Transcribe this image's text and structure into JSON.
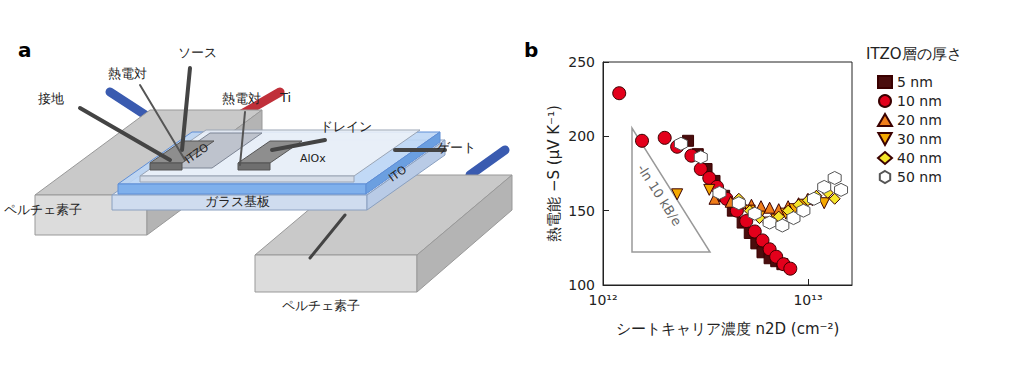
{
  "diagram": {
    "label": "a",
    "labels": {
      "source": "ソース",
      "thermocouple_left": "熱電対",
      "ground": "接地",
      "thermocouple_right": "熱電対",
      "ti": "Ti",
      "drain": "ドレイン",
      "gate": "ゲート",
      "itzo": "ITZO",
      "alox": "AlOx",
      "ito": "ITO",
      "glass": "ガラス基板",
      "peltier_left": "ペルチェ素子",
      "peltier_right": "ペルチェ素子"
    }
  },
  "chart_data": {
    "type": "scatter",
    "title": "b",
    "x_label": "シートキャリア濃度 n2D (cm⁻²)",
    "y_label": "熱電能 −S (μV K⁻¹)",
    "legend_title": "ITZO層の厚さ",
    "legend": "right",
    "annotations": [
      {
        "text": "-ln 10 kB/e"
      }
    ],
    "log": "x",
    "grid": false,
    "xlim": [
      1000000000000,
      16400000000000
    ],
    "xticks": [
      {
        "value": 1000000000000,
        "label": "10¹²"
      },
      {
        "value": 10000000000000,
        "label": "10¹³"
      }
    ],
    "ylim": [
      100,
      250
    ],
    "yticks": [
      100,
      150,
      200,
      250
    ],
    "series": [
      {
        "name": "5 nm",
        "color": "#4a0d0d",
        "marker": "square",
        "x": [
          2600000000000,
          2900000000000,
          3200000000000,
          3500000000000,
          3900000000000,
          4300000000000,
          4800000000000,
          5200000000000,
          5600000000000,
          6000000000000,
          6500000000000,
          7000000000000,
          7500000000000
        ],
        "values": [
          197,
          188,
          178,
          170,
          160,
          150,
          142,
          135,
          128,
          122,
          118,
          116,
          114
        ]
      },
      {
        "name": "10 nm",
        "color": "#e3001b",
        "marker": "circle",
        "x": [
          1200000000000,
          1550000000000,
          2000000000000,
          2300000000000,
          2700000000000,
          3000000000000,
          3300000000000,
          3600000000000,
          4000000000000,
          4500000000000,
          5000000000000,
          5500000000000,
          6000000000000,
          6500000000000,
          7000000000000,
          7600000000000,
          8200000000000
        ],
        "values": [
          229,
          197,
          199,
          193,
          187,
          178,
          172,
          166,
          158,
          150,
          143,
          136,
          130,
          124,
          119,
          114,
          111
        ]
      },
      {
        "name": "20 nm",
        "color": "#f07d1a",
        "marker": "triangle",
        "x": [
          3500000000000,
          4200000000000,
          4800000000000,
          5300000000000,
          5900000000000,
          6500000000000,
          7200000000000,
          8000000000000,
          9000000000000,
          10000000000000,
          11000000000000
        ],
        "values": [
          158,
          156,
          155,
          154,
          153,
          152,
          151,
          153,
          155,
          158,
          160
        ]
      },
      {
        "name": "30 nm",
        "color": "#f5a800",
        "marker": "triangle-down",
        "x": [
          2300000000000,
          3300000000000,
          5200000000000,
          5800000000000,
          6400000000000,
          7000000000000,
          7800000000000,
          8600000000000,
          9500000000000,
          10500000000000,
          12000000000000
        ],
        "values": [
          161,
          164,
          150,
          146,
          142,
          144,
          148,
          151,
          154,
          157,
          155
        ]
      },
      {
        "name": "40 nm",
        "color": "#f5e62a",
        "marker": "diamond",
        "x": [
          4600000000000,
          5200000000000,
          5800000000000,
          6400000000000,
          7200000000000,
          8000000000000,
          9000000000000,
          10000000000000,
          11000000000000,
          12500000000000,
          13500000000000
        ],
        "values": [
          158,
          150,
          145,
          142,
          146,
          150,
          154,
          157,
          160,
          162,
          158
        ]
      },
      {
        "name": "50 nm",
        "color": "#ffffff",
        "marker": "hexagon",
        "x": [
          2400000000000,
          3000000000000,
          3700000000000,
          4600000000000,
          5500000000000,
          6500000000000,
          7500000000000,
          8500000000000,
          9500000000000,
          10700000000000,
          12000000000000,
          13500000000000,
          14500000000000
        ],
        "values": [
          195,
          186,
          162,
          155,
          148,
          142,
          140,
          145,
          150,
          158,
          166,
          172,
          164
        ]
      }
    ]
  }
}
